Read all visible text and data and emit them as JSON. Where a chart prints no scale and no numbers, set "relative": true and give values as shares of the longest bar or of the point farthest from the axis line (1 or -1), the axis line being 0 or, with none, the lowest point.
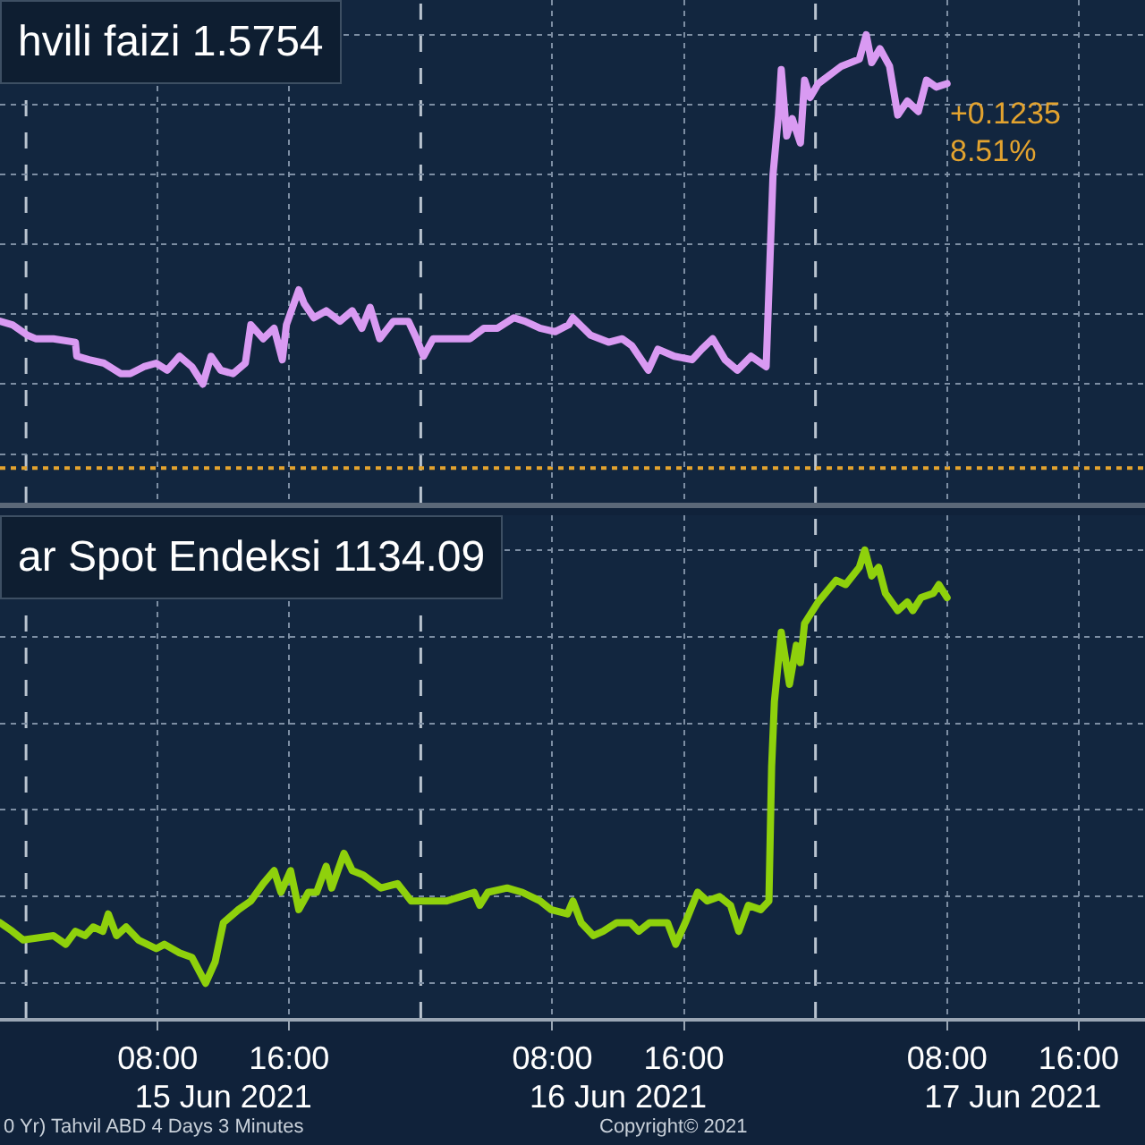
{
  "chart_data": [
    {
      "type": "line",
      "title": "hvili faizi 1.5754",
      "relative": true,
      "grid": true,
      "tick_labels": false,
      "series": [
        {
          "color": "#d99af2",
          "x": [
            "2021-06-14T22:25",
            "2021-06-14T23:10",
            "2021-06-15T00:05",
            "2021-06-15T00:35",
            "2021-06-15T01:40",
            "2021-06-15T03:00",
            "2021-06-15T03:05",
            "2021-06-15T03:50",
            "2021-06-15T04:45",
            "2021-06-15T05:45",
            "2021-06-15T06:20",
            "2021-06-15T07:10",
            "2021-06-15T07:55",
            "2021-06-15T08:35",
            "2021-06-15T09:20",
            "2021-06-15T10:05",
            "2021-06-15T10:45",
            "2021-06-15T11:15",
            "2021-06-15T11:50",
            "2021-06-15T12:35",
            "2021-06-15T13:20",
            "2021-06-15T13:40",
            "2021-06-15T14:25",
            "2021-06-15T15:05",
            "2021-06-15T15:35",
            "2021-06-15T15:50",
            "2021-06-15T16:35",
            "2021-06-15T16:55",
            "2021-06-15T17:30",
            "2021-06-15T18:15",
            "2021-06-15T19:05",
            "2021-06-15T19:50",
            "2021-06-15T20:25",
            "2021-06-15T20:55",
            "2021-06-15T21:30",
            "2021-06-15T22:20",
            "2021-06-15T23:15",
            "2021-06-15T23:45",
            "2021-06-16T00:10",
            "2021-06-16T00:45",
            "2021-06-16T03:00",
            "2021-06-16T03:50",
            "2021-06-16T04:40",
            "2021-06-16T05:40",
            "2021-06-16T06:20",
            "2021-06-16T07:15",
            "2021-06-16T08:10",
            "2021-06-16T09:00",
            "2021-06-16T09:15",
            "2021-06-16T10:20",
            "2021-06-16T11:25",
            "2021-06-16T12:15",
            "2021-06-16T12:50",
            "2021-06-16T13:50",
            "2021-06-16T14:25",
            "2021-06-16T15:25",
            "2021-06-16T16:30",
            "2021-06-16T17:05",
            "2021-06-16T17:45",
            "2021-06-16T18:30",
            "2021-06-16T19:15",
            "2021-06-16T20:05",
            "2021-06-16T21:00",
            "2021-06-16T21:25",
            "2021-06-16T21:45",
            "2021-06-16T21:55",
            "2021-06-16T22:15",
            "2021-06-16T22:35",
            "2021-06-16T23:05",
            "2021-06-16T23:20",
            "2021-06-16T23:40",
            "2021-06-17T00:10",
            "2021-06-17T01:35",
            "2021-06-17T02:40",
            "2021-06-17T03:05",
            "2021-06-17T03:25",
            "2021-06-17T03:55",
            "2021-06-17T04:30",
            "2021-06-17T05:00",
            "2021-06-17T05:35",
            "2021-06-17T06:15",
            "2021-06-17T06:45",
            "2021-06-17T07:20",
            "2021-06-17T08:00"
          ],
          "values": [
            0.18,
            0.17,
            0.14,
            0.13,
            0.13,
            0.12,
            0.08,
            0.07,
            0.06,
            0.03,
            0.03,
            0.05,
            0.06,
            0.04,
            0.08,
            0.05,
            0,
            0.08,
            0.04,
            0.03,
            0.06,
            0.17,
            0.13,
            0.16,
            0.07,
            0.17,
            0.27,
            0.23,
            0.19,
            0.21,
            0.18,
            0.21,
            0.16,
            0.22,
            0.13,
            0.18,
            0.18,
            0.13,
            0.08,
            0.13,
            0.13,
            0.16,
            0.16,
            0.19,
            0.18,
            0.16,
            0.15,
            0.17,
            0.19,
            0.14,
            0.12,
            0.13,
            0.11,
            0.04,
            0.1,
            0.08,
            0.07,
            0.1,
            0.13,
            0.07,
            0.04,
            0.08,
            0.05,
            0.6,
            0.77,
            0.9,
            0.71,
            0.76,
            0.69,
            0.87,
            0.82,
            0.86,
            0.91,
            0.93,
            1,
            0.92,
            0.96,
            0.91,
            0.77,
            0.81,
            0.78,
            0.87,
            0.85,
            0.86
          ]
        }
      ],
      "xlim": [
        "2021-06-14T22:25",
        "2021-06-17T20:02"
      ],
      "xticks": [
        {
          "value": "2021-06-15T08:00",
          "label": null
        },
        {
          "value": "2021-06-15T16:00",
          "label": null
        },
        {
          "value": "2021-06-16T08:00",
          "label": null
        },
        {
          "value": "2021-06-16T16:00",
          "label": null
        },
        {
          "value": "2021-06-17T08:00",
          "label": null
        },
        {
          "value": "2021-06-17T16:00",
          "label": null
        }
      ],
      "ref_lines": [
        {
          "axis": "x",
          "value": "2021-06-15T00:00",
          "color": "#b9c3cf",
          "line_style": "dashed"
        },
        {
          "axis": "x",
          "value": "2021-06-16T00:00",
          "color": "#b9c3cf",
          "line_style": "dashed"
        },
        {
          "axis": "x",
          "value": "2021-06-17T00:00",
          "color": "#b9c3cf",
          "line_style": "dashed"
        },
        {
          "axis": "y",
          "value": -0.24,
          "color": "#e3a32f",
          "line_style": "dotted"
        }
      ],
      "annotations": [
        {
          "text": "+0.1235",
          "x": "2021-06-17T08:00",
          "y": 0.86
        },
        {
          "text": "8.51%",
          "x": "2021-06-17T08:00",
          "y": 0.86
        }
      ]
    },
    {
      "type": "line",
      "title": "ar Spot Endeksi 1134.09",
      "relative": true,
      "grid": true,
      "tick_labels": "x",
      "series": [
        {
          "color": "#8fd10c",
          "x": [
            "2021-06-14T22:25",
            "2021-06-14T23:10",
            "2021-06-14T23:50",
            "2021-06-15T01:40",
            "2021-06-15T02:25",
            "2021-06-15T03:00",
            "2021-06-15T03:35",
            "2021-06-15T04:05",
            "2021-06-15T04:40",
            "2021-06-15T05:00",
            "2021-06-15T05:30",
            "2021-06-15T06:05",
            "2021-06-15T06:50",
            "2021-06-15T07:55",
            "2021-06-15T08:25",
            "2021-06-15T09:20",
            "2021-06-15T10:05",
            "2021-06-15T10:55",
            "2021-06-15T11:30",
            "2021-06-15T12:00",
            "2021-06-15T12:55",
            "2021-06-15T13:40",
            "2021-06-15T14:25",
            "2021-06-15T15:05",
            "2021-06-15T15:30",
            "2021-06-15T16:05",
            "2021-06-15T16:35",
            "2021-06-15T17:10",
            "2021-06-15T17:40",
            "2021-06-15T18:15",
            "2021-06-15T18:35",
            "2021-06-15T19:20",
            "2021-06-15T19:50",
            "2021-06-15T20:30",
            "2021-06-15T21:35",
            "2021-06-15T22:35",
            "2021-06-15T23:25",
            "2021-06-16T00:30",
            "2021-06-16T01:35",
            "2021-06-16T02:25",
            "2021-06-16T03:15",
            "2021-06-16T03:35",
            "2021-06-16T04:05",
            "2021-06-16T05:15",
            "2021-06-16T06:10",
            "2021-06-16T07:15",
            "2021-06-16T07:55",
            "2021-06-16T08:55",
            "2021-06-16T09:15",
            "2021-06-16T09:45",
            "2021-06-16T10:30",
            "2021-06-16T11:05",
            "2021-06-16T11:55",
            "2021-06-16T12:45",
            "2021-06-16T13:15",
            "2021-06-16T13:55",
            "2021-06-16T15:00",
            "2021-06-16T15:30",
            "2021-06-16T16:05",
            "2021-06-16T16:50",
            "2021-06-16T17:25",
            "2021-06-16T18:10",
            "2021-06-16T18:50",
            "2021-06-16T19:20",
            "2021-06-16T19:55",
            "2021-06-16T20:40",
            "2021-06-16T21:10",
            "2021-06-16T21:20",
            "2021-06-16T21:30",
            "2021-06-16T21:55",
            "2021-06-16T22:25",
            "2021-06-16T22:50",
            "2021-06-16T23:05",
            "2021-06-16T23:20",
            "2021-06-17T00:10",
            "2021-06-17T01:15",
            "2021-06-17T01:50",
            "2021-06-17T02:40",
            "2021-06-17T03:00",
            "2021-06-17T03:25",
            "2021-06-17T03:50",
            "2021-06-17T04:15",
            "2021-06-17T05:00",
            "2021-06-17T05:35",
            "2021-06-17T05:55",
            "2021-06-17T06:25",
            "2021-06-17T07:10",
            "2021-06-17T07:30",
            "2021-06-17T08:00"
          ],
          "values": [
            0.14,
            0.12,
            0.1,
            0.11,
            0.09,
            0.12,
            0.11,
            0.13,
            0.12,
            0.16,
            0.11,
            0.13,
            0.1,
            0.08,
            0.09,
            0.07,
            0.06,
            0,
            0.05,
            0.14,
            0.17,
            0.19,
            0.23,
            0.26,
            0.21,
            0.26,
            0.17,
            0.21,
            0.21,
            0.27,
            0.22,
            0.3,
            0.26,
            0.25,
            0.22,
            0.23,
            0.19,
            0.19,
            0.19,
            0.2,
            0.21,
            0.18,
            0.21,
            0.22,
            0.21,
            0.19,
            0.17,
            0.16,
            0.19,
            0.14,
            0.11,
            0.12,
            0.14,
            0.14,
            0.12,
            0.14,
            0.14,
            0.09,
            0.14,
            0.21,
            0.19,
            0.2,
            0.18,
            0.12,
            0.18,
            0.17,
            0.19,
            0.5,
            0.65,
            0.81,
            0.69,
            0.78,
            0.74,
            0.83,
            0.88,
            0.93,
            0.92,
            0.96,
            1,
            0.94,
            0.96,
            0.9,
            0.86,
            0.88,
            0.86,
            0.89,
            0.9,
            0.92,
            0.89
          ]
        }
      ],
      "xlim": [
        "2021-06-14T22:25",
        "2021-06-17T20:02"
      ],
      "xticks": [
        {
          "value": "2021-06-15T08:00",
          "label": "08:00"
        },
        {
          "value": "2021-06-15T16:00",
          "label": "16:00"
        },
        {
          "value": "2021-06-16T08:00",
          "label": "08:00"
        },
        {
          "value": "2021-06-16T16:00",
          "label": "16:00"
        },
        {
          "value": "2021-06-17T08:00",
          "label": "08:00"
        },
        {
          "value": "2021-06-17T16:00",
          "label": "16:00"
        }
      ],
      "x2lim": [
        "2021-06-14T22:25",
        "2021-06-17T20:02"
      ],
      "x2ticks": [
        {
          "value": "2021-06-15T12:00",
          "label": "15 Jun 2021"
        },
        {
          "value": "2021-06-16T12:00",
          "label": "16 Jun 2021"
        },
        {
          "value": "2021-06-17T12:00",
          "label": "17 Jun 2021"
        }
      ],
      "ref_lines": [
        {
          "axis": "x",
          "value": "2021-06-15T00:00",
          "color": "#b9c3cf",
          "line_style": "dashed"
        },
        {
          "axis": "x",
          "value": "2021-06-16T00:00",
          "color": "#b9c3cf",
          "line_style": "dashed"
        },
        {
          "axis": "x",
          "value": "2021-06-17T00:00",
          "color": "#b9c3cf",
          "line_style": "dashed"
        }
      ],
      "annotations": [
        "0 Yr) Tahvil ABD 4 Days 3 Minutes",
        "Copyright© 2021"
      ]
    }
  ]
}
